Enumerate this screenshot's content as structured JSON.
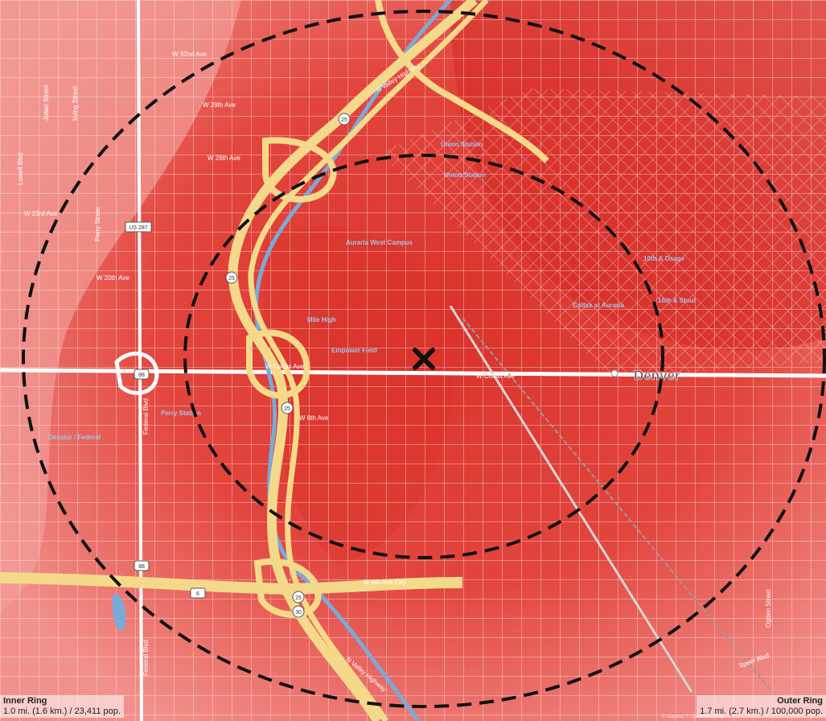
{
  "map": {
    "city_label": "Denver",
    "center_marker": "x-marker-icon",
    "colors": {
      "base": "#e85a52",
      "dense": "#d9332b",
      "light": "#f2908b",
      "highway": "#f5d98b",
      "river": "#7aaad8",
      "ring": "#111111",
      "street": "#ffffff"
    },
    "street_labels": [
      "W 32nd Ave",
      "W 29th Ave",
      "W 26th Ave",
      "W 23rd Ave",
      "W 20th Ave",
      "W Colfax Ave",
      "W Colfax Ave",
      "W 8th Ave",
      "W 6th Ave Fwy",
      "N Valley Highway",
      "N Valley Highway",
      "Julian Street",
      "Irving Street",
      "Lowell Blvd",
      "Perry Street",
      "Federal Blvd",
      "Federal Blvd",
      "US 287",
      "Ogden Street",
      "Speer Blvd"
    ],
    "route_shields": [
      "25",
      "25",
      "25",
      "25",
      "88",
      "88",
      "6",
      "30"
    ],
    "transit_labels": [
      "Union Station",
      "Union Station",
      "Auraria West Campus",
      "Mile High",
      "Empower Field",
      "10th & Osage",
      "Colfax at Auraria",
      "16th & Stout",
      "Perry Station",
      "Decatur / Federal"
    ]
  },
  "inner_ring": {
    "title": "Inner Ring",
    "stats": "1.0 mi. (1.6 km.) / 23,411 pop."
  },
  "outer_ring": {
    "title": "Outer Ring",
    "stats": "1.7 mi. (2.7 km.) / 100,000 pop."
  },
  "attribution": "© Mapbox © OpenStreetMap"
}
